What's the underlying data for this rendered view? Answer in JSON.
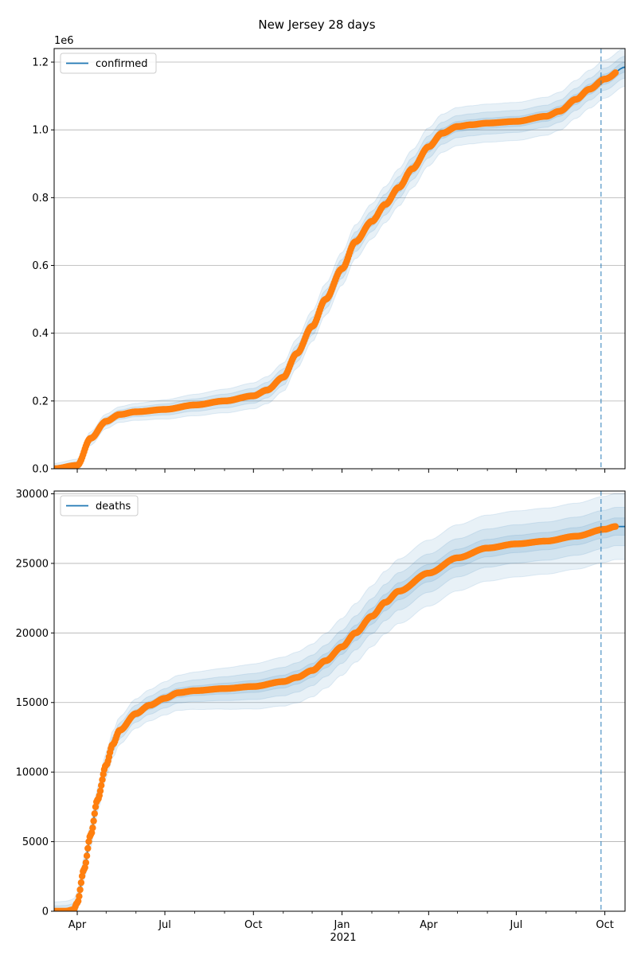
{
  "figure": {
    "title": "New Jersey 28 days"
  },
  "chart_data": [
    {
      "type": "line",
      "legend": {
        "label": "confirmed",
        "placement": "top-left"
      },
      "offset_text": "1e6",
      "grid": "y",
      "xlim": [
        "2020-03-08",
        "2021-10-22"
      ],
      "ylim": [
        0,
        1.24
      ],
      "y_ticks": [
        0,
        0.2,
        0.4,
        0.6,
        0.8,
        1.0,
        1.2
      ],
      "y_tick_labels": [
        "0.0",
        "0.2",
        "0.4",
        "0.6",
        "0.8",
        "1.0",
        "1.2"
      ],
      "forecast_start": "2021-09-27",
      "x": [
        "2020-03-08",
        "2020-04-01",
        "2020-04-15",
        "2020-05-01",
        "2020-05-15",
        "2020-06-01",
        "2020-07-01",
        "2020-08-01",
        "2020-09-01",
        "2020-10-01",
        "2020-10-15",
        "2020-11-01",
        "2020-11-15",
        "2020-12-01",
        "2020-12-15",
        "2021-01-01",
        "2021-01-15",
        "2021-02-01",
        "2021-02-15",
        "2021-03-01",
        "2021-03-15",
        "2021-04-01",
        "2021-04-15",
        "2021-05-01",
        "2021-05-15",
        "2021-06-01",
        "2021-07-01",
        "2021-08-01",
        "2021-08-15",
        "2021-09-01",
        "2021-09-15",
        "2021-10-01",
        "2021-10-22"
      ],
      "y": [
        0,
        0.01,
        0.09,
        0.14,
        0.16,
        0.168,
        0.175,
        0.188,
        0.2,
        0.215,
        0.232,
        0.27,
        0.34,
        0.42,
        0.5,
        0.59,
        0.67,
        0.73,
        0.78,
        0.83,
        0.885,
        0.95,
        0.99,
        1.01,
        1.015,
        1.02,
        1.025,
        1.04,
        1.055,
        1.09,
        1.12,
        1.15,
        1.185
      ],
      "observed_end": "2021-10-12",
      "band_widths": [
        0.012,
        0.026,
        0.045
      ],
      "series": [
        {
          "name": "confirmed",
          "role": "model",
          "color": "#1f77b4"
        },
        {
          "name": "",
          "role": "observed",
          "color": "#ff7f0e"
        }
      ]
    },
    {
      "type": "line",
      "legend": {
        "label": "deaths",
        "placement": "top-left"
      },
      "grid": "y",
      "xlim": [
        "2020-03-08",
        "2021-10-22"
      ],
      "ylim": [
        0,
        30200
      ],
      "y_ticks": [
        0,
        5000,
        10000,
        15000,
        20000,
        25000,
        30000
      ],
      "y_tick_labels": [
        "0",
        "5000",
        "10000",
        "15000",
        "20000",
        "25000",
        "30000"
      ],
      "forecast_start": "2021-09-27",
      "x": [
        "2020-03-08",
        "2020-03-20",
        "2020-03-28",
        "2020-04-01",
        "2020-04-08",
        "2020-04-15",
        "2020-04-22",
        "2020-05-01",
        "2020-05-08",
        "2020-05-15",
        "2020-06-01",
        "2020-06-15",
        "2020-07-01",
        "2020-07-15",
        "2020-08-01",
        "2020-09-01",
        "2020-10-01",
        "2020-11-01",
        "2020-11-15",
        "2020-12-01",
        "2020-12-15",
        "2021-01-01",
        "2021-01-15",
        "2021-02-01",
        "2021-02-15",
        "2021-03-01",
        "2021-04-01",
        "2021-05-01",
        "2021-06-01",
        "2021-07-01",
        "2021-08-01",
        "2021-09-01",
        "2021-10-01",
        "2021-10-12"
      ],
      "y": [
        0,
        0,
        100,
        600,
        3000,
        5500,
        8000,
        10500,
        12000,
        13000,
        14200,
        14800,
        15300,
        15700,
        15850,
        16000,
        16150,
        16500,
        16800,
        17300,
        18000,
        19000,
        20000,
        21200,
        22200,
        23000,
        24300,
        25400,
        26100,
        26400,
        26600,
        26950,
        27450,
        27650
      ],
      "observed_end": "2021-10-12",
      "band_widths": [
        500,
        1100,
        1900
      ],
      "series": [
        {
          "name": "deaths",
          "role": "model",
          "color": "#1f77b4"
        },
        {
          "name": "",
          "role": "observed",
          "color": "#ff7f0e"
        }
      ]
    }
  ],
  "x_axis": {
    "tick_dates": [
      "2020-04-01",
      "2020-07-01",
      "2020-10-01",
      "2021-01-01",
      "2021-04-01",
      "2021-07-01",
      "2021-10-01"
    ],
    "tick_labels": [
      "Apr",
      "Jul",
      "Oct",
      "Jan",
      "Apr",
      "Jul",
      "Oct"
    ],
    "year_label": "2021",
    "minor_tick_dates": [
      "2020-05-01",
      "2020-06-01",
      "2020-08-01",
      "2020-09-01",
      "2020-11-01",
      "2020-12-01",
      "2021-02-01",
      "2021-03-01",
      "2021-05-01",
      "2021-06-01",
      "2021-08-01",
      "2021-09-01"
    ]
  }
}
